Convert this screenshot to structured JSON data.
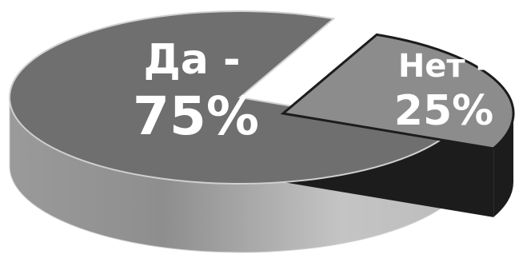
{
  "chart_data": {
    "type": "pie",
    "style": "3d-exploded",
    "slices": [
      {
        "category": "Да",
        "value": 75,
        "label_line1": "Да -",
        "label_line2": "75%",
        "color_top": "#6f6f6f",
        "color_side": "#a8a8a8"
      },
      {
        "category": "Нет",
        "value": 25,
        "label_line1": "Нет -",
        "label_line2": "25%",
        "color_top": "#8c8c8c",
        "color_side": "#1c1c1c"
      }
    ]
  }
}
